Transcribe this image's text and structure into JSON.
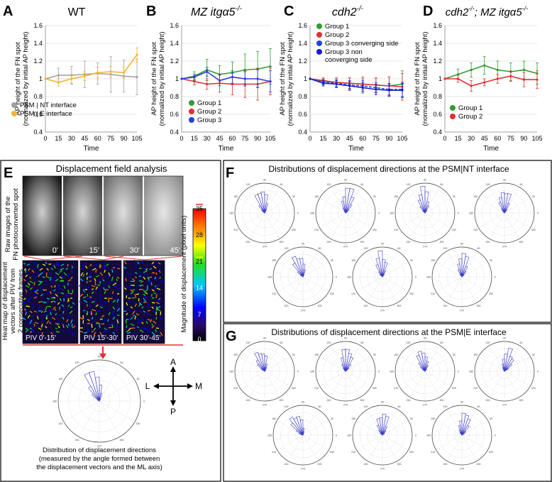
{
  "panel_letters": {
    "A": "A",
    "B": "B",
    "C": "C",
    "D": "D",
    "E": "E",
    "F": "F",
    "G": "G"
  },
  "panels": {
    "A": {
      "title": "WT",
      "title_italic": false
    },
    "B": {
      "title": "MZ itgα5",
      "title_sup": "-/-",
      "title_italic": true
    },
    "C": {
      "title": "cdh2",
      "title_sup": "-/-",
      "title_italic": true
    },
    "D": {
      "title_part1": "cdh2",
      "title_part1_sup": "-/-",
      "title_sep": "; ",
      "title_part2": "MZ itgα5",
      "title_part2_sup": "-/-",
      "title_italic": true
    }
  },
  "axis": {
    "xlabel": "Time",
    "ylabel_line1": "AP height of the FN spot",
    "ylabel_line2": "(normalized by initial AP height)",
    "yticks": [
      "0.4",
      "0.6",
      "0.8",
      "1",
      "1.2",
      "1.4",
      "1.6"
    ],
    "xticks": [
      "0",
      "15",
      "30",
      "45",
      "60",
      "75",
      "90",
      "105"
    ]
  },
  "chart_data": [
    {
      "type": "line",
      "panel": "A",
      "title": "WT",
      "xlabel": "Time",
      "ylabel": "AP height of the FN spot (normalized by initial AP height)",
      "x": [
        0,
        15,
        30,
        45,
        60,
        75,
        90,
        105
      ],
      "ylim": [
        0.4,
        1.6
      ],
      "legend_position": "bottom-left",
      "series": [
        {
          "name": "PSM | NT interface",
          "color": "#a0a0a0",
          "values": [
            1.0,
            1.04,
            1.04,
            1.05,
            1.06,
            1.05,
            1.03,
            1.02
          ],
          "errors": [
            0,
            0.08,
            0.1,
            0.15,
            0.12,
            0.2,
            0.18,
            0.2
          ]
        },
        {
          "name": "PSM | E interface",
          "color": "#f5b335",
          "values": [
            1.0,
            0.96,
            1.0,
            1.03,
            1.07,
            1.08,
            1.07,
            1.27
          ],
          "errors": [
            0,
            0.04,
            0.05,
            0.05,
            0.06,
            0.06,
            0.06,
            0.08
          ]
        }
      ]
    },
    {
      "type": "line",
      "panel": "B",
      "title": "MZ itgα5-/-",
      "xlabel": "Time",
      "ylabel": "AP height of the FN spot (normalized by initial AP height)",
      "x": [
        0,
        15,
        30,
        45,
        60,
        75,
        90,
        105
      ],
      "ylim": [
        0.4,
        1.6
      ],
      "legend_position": "bottom-left",
      "series": [
        {
          "name": "Group 1",
          "color": "#2e9e2e",
          "values": [
            1.0,
            1.03,
            1.1,
            1.05,
            1.07,
            1.1,
            1.11,
            1.14
          ],
          "errors": [
            0,
            0.05,
            0.12,
            0.1,
            0.12,
            0.18,
            0.2,
            0.2
          ]
        },
        {
          "name": "Group 2",
          "color": "#e03030",
          "values": [
            1.0,
            0.97,
            0.94,
            0.95,
            0.94,
            0.94,
            0.94,
            0.97
          ],
          "errors": [
            0,
            0.04,
            0.06,
            0.1,
            0.12,
            0.15,
            0.18,
            0.15
          ]
        },
        {
          "name": "Group 3",
          "color": "#2b3fd8",
          "values": [
            1.0,
            1.02,
            1.08,
            0.98,
            1.02,
            1.0,
            1.0,
            0.97
          ],
          "errors": [
            0,
            0.03,
            0.05,
            0.06,
            0.07,
            0.08,
            0.1,
            0.12
          ]
        }
      ]
    },
    {
      "type": "line",
      "panel": "C",
      "title": "cdh2-/-",
      "xlabel": "Time",
      "ylabel": "AP height of the FN spot (normalized by initial AP height)",
      "x": [
        0,
        15,
        30,
        45,
        60,
        75,
        90,
        105
      ],
      "ylim": [
        0.4,
        1.6
      ],
      "legend_position": "top-left",
      "series": [
        {
          "name": "Group 1",
          "color": "#2e9e2e",
          "values": [
            1.0,
            0.97,
            0.96,
            0.95,
            0.94,
            0.93,
            0.92,
            0.94
          ],
          "errors": [
            0,
            0.03,
            0.05,
            0.06,
            0.06,
            0.08,
            0.1,
            0.15
          ]
        },
        {
          "name": "Group 2",
          "color": "#e03030",
          "values": [
            1.0,
            0.98,
            0.96,
            0.95,
            0.94,
            0.93,
            0.92,
            0.91
          ],
          "errors": [
            0,
            0.03,
            0.05,
            0.06,
            0.08,
            0.08,
            0.1,
            0.15
          ]
        },
        {
          "name": "Group 3 converging side",
          "color": "#2b3fd8",
          "dashed": true,
          "values": [
            1.0,
            0.96,
            0.95,
            0.93,
            0.92,
            0.9,
            0.88,
            0.88
          ],
          "errors": [
            0,
            0.03,
            0.04,
            0.05,
            0.06,
            0.06,
            0.07,
            0.08
          ]
        },
        {
          "name": "Group 3 non converging side",
          "color": "#1020c8",
          "values": [
            1.0,
            0.95,
            0.94,
            0.92,
            0.9,
            0.88,
            0.87,
            0.87
          ],
          "errors": [
            0,
            0.03,
            0.04,
            0.05,
            0.06,
            0.06,
            0.07,
            0.08
          ]
        }
      ]
    },
    {
      "type": "line",
      "panel": "D",
      "title": "cdh2-/-; MZ itgα5-/-",
      "xlabel": "Time",
      "ylabel": "AP height of the FN spot (normalized by initial AP height)",
      "x": [
        0,
        15,
        30,
        45,
        60,
        75,
        90,
        105
      ],
      "ylim": [
        0.4,
        1.6
      ],
      "legend_position": "bottom-left",
      "series": [
        {
          "name": "Group 1",
          "color": "#2e9e2e",
          "values": [
            1.0,
            1.05,
            1.1,
            1.15,
            1.1,
            1.08,
            1.1,
            1.06
          ],
          "errors": [
            0,
            0.06,
            0.08,
            0.1,
            0.1,
            0.1,
            0.1,
            0.12
          ]
        },
        {
          "name": "Group 2",
          "color": "#e03030",
          "values": [
            1.0,
            1.0,
            0.92,
            0.96,
            1.0,
            1.03,
            0.99,
            0.99
          ],
          "errors": [
            0,
            0.04,
            0.06,
            0.04,
            0.05,
            0.06,
            0.08,
            0.1
          ]
        }
      ]
    }
  ],
  "panelE": {
    "heading": "Displacement field analysis",
    "raw_label_line1": "Raw images of the",
    "raw_label_line2": "FN photoconverted spot",
    "frames": [
      "0'",
      "15'",
      "30'",
      "45'"
    ],
    "heatmap_label_line1": "Heat map of displacement",
    "heatmap_label_line2": "vectors after PIV from",
    "heatmap_label_line3": "2 consecutive frames",
    "piv": [
      "PIV 0'-15'",
      "PIV 15'-30'",
      "PIV 30'-45'"
    ],
    "colorbar_label": "Magnitude of displacement (pixel units)",
    "colorbar_ticks": [
      "0",
      "7",
      "14",
      "21",
      "28",
      "35"
    ],
    "axes_labels": {
      "A": "A",
      "P": "P",
      "L": "L",
      "M": "M"
    },
    "caption_line1": "Distribution of displacement directions",
    "caption_line2": "(measured by the angle formed between",
    "caption_line3": "the displacement vectors and the ML axis)"
  },
  "panelF": {
    "heading": "Distributions of displacement directions at the PSM|NT interface"
  },
  "panelG": {
    "heading": "Distributions of displacement directions at the PSM|E interface"
  },
  "polar_angle_labels": [
    "0",
    "30",
    "60",
    "90",
    "120",
    "150",
    "180",
    "210",
    "240",
    "270",
    "300",
    "330"
  ]
}
